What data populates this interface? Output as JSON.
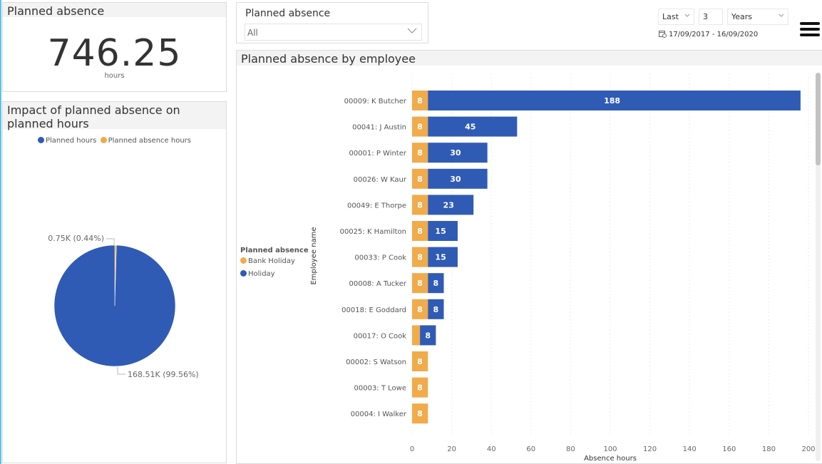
{
  "colors": {
    "planned_hours": "#2f5bb4",
    "absence": "#f0ab4b",
    "holiday": "#2f5bb4",
    "bank_holiday": "#f0ab4b",
    "accent": "#5bc3e8"
  },
  "kpi": {
    "title": "Planned absence",
    "value": "746.25",
    "unit": "hours"
  },
  "pie_panel": {
    "title": "Impact of planned absence on planned hours",
    "legend": [
      {
        "label": "Planned hours",
        "color": "#2f5bb4"
      },
      {
        "label": "Planned absence hours",
        "color": "#f0ab4b"
      }
    ]
  },
  "slicer": {
    "title": "Planned absence",
    "selected": "All"
  },
  "date_filter": {
    "period": "Last",
    "count": "3",
    "unit": "Years",
    "range": "17/09/2017 - 16/09/2020"
  },
  "bar_panel": {
    "title": "Planned absence by employee",
    "legend_title": "Planned absence",
    "legend": [
      {
        "label": "Bank Holiday",
        "color": "#f0ab4b"
      },
      {
        "label": "Holiday",
        "color": "#2f5bb4"
      }
    ]
  },
  "chart_data": [
    {
      "type": "pie",
      "title": "Impact of planned absence on planned hours",
      "slices": [
        {
          "name": "Planned hours",
          "value": 168510,
          "label": "168.51K (99.56%)",
          "percent": 99.56
        },
        {
          "name": "Planned absence hours",
          "value": 750,
          "label": "0.75K (0.44%)",
          "percent": 0.44
        }
      ],
      "legend": "top-center"
    },
    {
      "type": "bar",
      "orientation": "horizontal",
      "stacked": true,
      "title": "Planned absence by employee",
      "xlabel": "Absence hours",
      "ylabel": "Employee name",
      "xlim": [
        0,
        200
      ],
      "xticks": [
        0,
        20,
        40,
        60,
        80,
        100,
        120,
        140,
        160,
        180,
        200
      ],
      "grid": true,
      "legend": "left",
      "categories": [
        "00009: K Butcher",
        "00041: J Austin",
        "00001: P Winter",
        "00026: W Kaur",
        "00049: E Thorpe",
        "00025: K Hamilton",
        "00033: P Cook",
        "00008: A Tucker",
        "00018: E Goddard",
        "00017: O Cook",
        "00002: S Watson",
        "00003: T Lowe",
        "00004: I Walker"
      ],
      "series": [
        {
          "name": "Bank Holiday",
          "values": [
            8,
            8,
            8,
            8,
            8,
            8,
            8,
            8,
            8,
            4,
            8,
            8,
            8
          ],
          "labels": [
            "8",
            "8",
            "8",
            "8",
            "8",
            "8",
            "8",
            "8",
            "8",
            "",
            "8",
            "8",
            "8"
          ]
        },
        {
          "name": "Holiday",
          "values": [
            188,
            45,
            30,
            30,
            23,
            15,
            15,
            8,
            8,
            8,
            0,
            0,
            0
          ],
          "labels": [
            "188",
            "45",
            "30",
            "30",
            "23",
            "15",
            "15",
            "8",
            "8",
            "8",
            "",
            "",
            ""
          ]
        }
      ]
    }
  ]
}
